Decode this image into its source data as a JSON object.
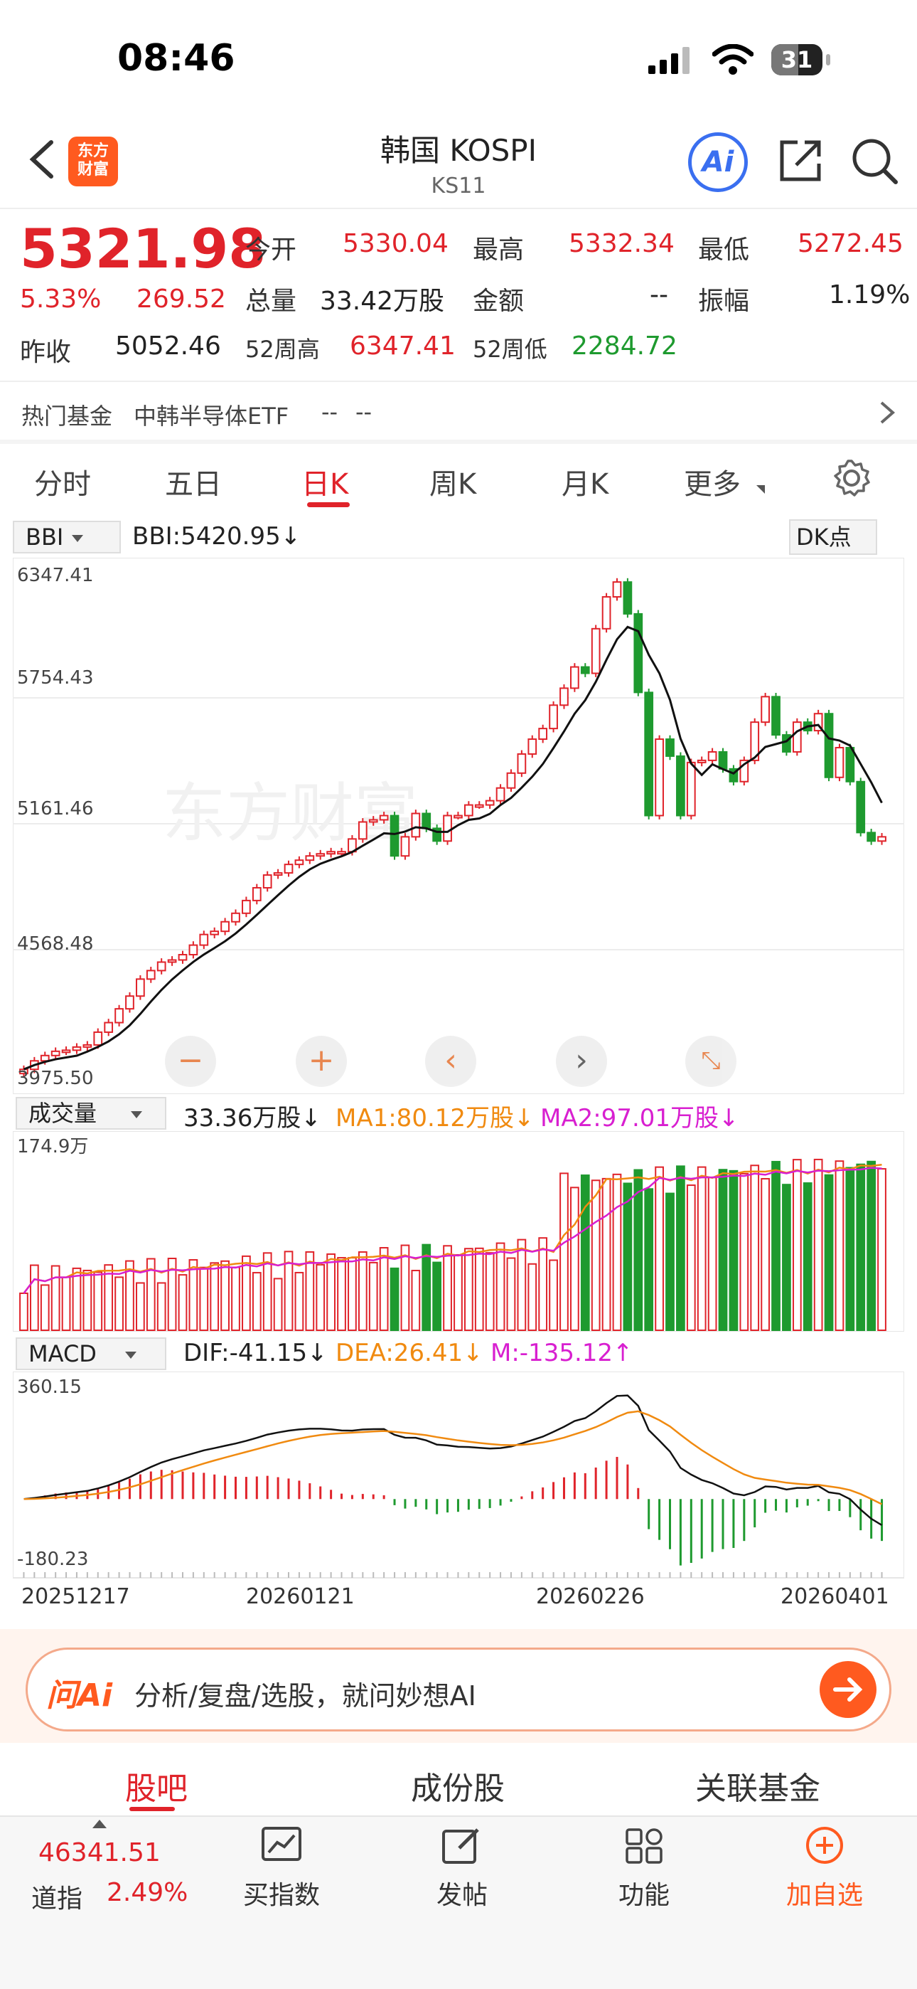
{
  "status_bar": {
    "time": "08:46",
    "battery": "31"
  },
  "header": {
    "logo_line1": "东方",
    "logo_line2": "财富",
    "title": "韩国 KOSPI",
    "code": "KS11",
    "ai_label": "Ai"
  },
  "quote": {
    "price": "5321.98",
    "change_pct": "5.33%",
    "change": "269.52",
    "prev_close_label": "昨收",
    "prev_close": "5052.46",
    "open_label": "今开",
    "open": "5330.04",
    "high_label": "最高",
    "high": "5332.34",
    "low_label": "最低",
    "low": "5272.45",
    "volume_label": "总量",
    "volume": "33.42万股",
    "amount_label": "金额",
    "amount": "--",
    "amplitude_label": "振幅",
    "amplitude": "1.19%",
    "high52_label": "52周高",
    "high52": "6347.41",
    "low52_label": "52周低",
    "low52": "2284.72"
  },
  "hot_fund": {
    "label": "热门基金",
    "name": "中韩半导体ETF",
    "v1": "--",
    "v2": "--"
  },
  "tabs": [
    {
      "label": "分时"
    },
    {
      "label": "五日"
    },
    {
      "label": "日K"
    },
    {
      "label": "周K"
    },
    {
      "label": "月K"
    },
    {
      "label": "更多"
    }
  ],
  "indicator": {
    "bbi_select": "BBI",
    "bbi_text": "BBI:5420.95↓",
    "dk_label": "DK点",
    "vol_select": "成交量",
    "vol_text": "33.36万股↓",
    "ma1_text": "MA1:80.12万股↓",
    "ma2_text": "MA2:97.01万股↓",
    "macd_select": "MACD",
    "dif_text": "DIF:-41.15↓",
    "dea_text": "DEA:26.41↓",
    "m_text": "M:-135.12↑"
  },
  "chart_data": {
    "type": "candlestick",
    "price_axis_labels": [
      "6347.41",
      "5754.43",
      "5161.46",
      "4568.48",
      "3975.50"
    ],
    "volume_axis_label": "174.9万",
    "macd_axis_labels": [
      "360.15",
      "-180.23"
    ],
    "x_labels": [
      "20251217",
      "20260121",
      "20260226",
      "20260401"
    ],
    "closes": [
      4005,
      4045,
      4070,
      4090,
      4095,
      4110,
      4120,
      4180,
      4225,
      4290,
      4350,
      4430,
      4470,
      4510,
      4520,
      4545,
      4590,
      4640,
      4655,
      4700,
      4740,
      4800,
      4860,
      4920,
      4930,
      4970,
      4990,
      5010,
      5020,
      5030,
      5030,
      5090,
      5170,
      5180,
      5200,
      5010,
      5100,
      5210,
      5140,
      5080,
      5200,
      5200,
      5250,
      5250,
      5270,
      5330,
      5400,
      5490,
      5560,
      5610,
      5720,
      5800,
      5900,
      5870,
      6080,
      6230,
      6300,
      6150,
      5780,
      5200,
      5560,
      5480,
      5200,
      5450,
      5460,
      5500,
      5420,
      5360,
      5460,
      5640,
      5760,
      5580,
      5500,
      5640,
      5600,
      5680,
      5380,
      5520,
      5360,
      5120,
      5080,
      5100
    ]
  },
  "ask_bar": {
    "brand": "问Ai",
    "placeholder": "分析/复盘/选股，就问妙想AI"
  },
  "bottom_tabs": [
    {
      "label": "股吧"
    },
    {
      "label": "成份股"
    },
    {
      "label": "关联基金"
    }
  ],
  "bottom_bar": {
    "index_value": "46341.51",
    "index_name": "道指",
    "index_change": "2.49%",
    "buy_label": "买指数",
    "post_label": "发帖",
    "func_label": "功能",
    "add_label": "加自选"
  },
  "colors": {
    "up": "#e0232a",
    "down": "#1e9a2f",
    "accent": "#ff5a1f"
  }
}
